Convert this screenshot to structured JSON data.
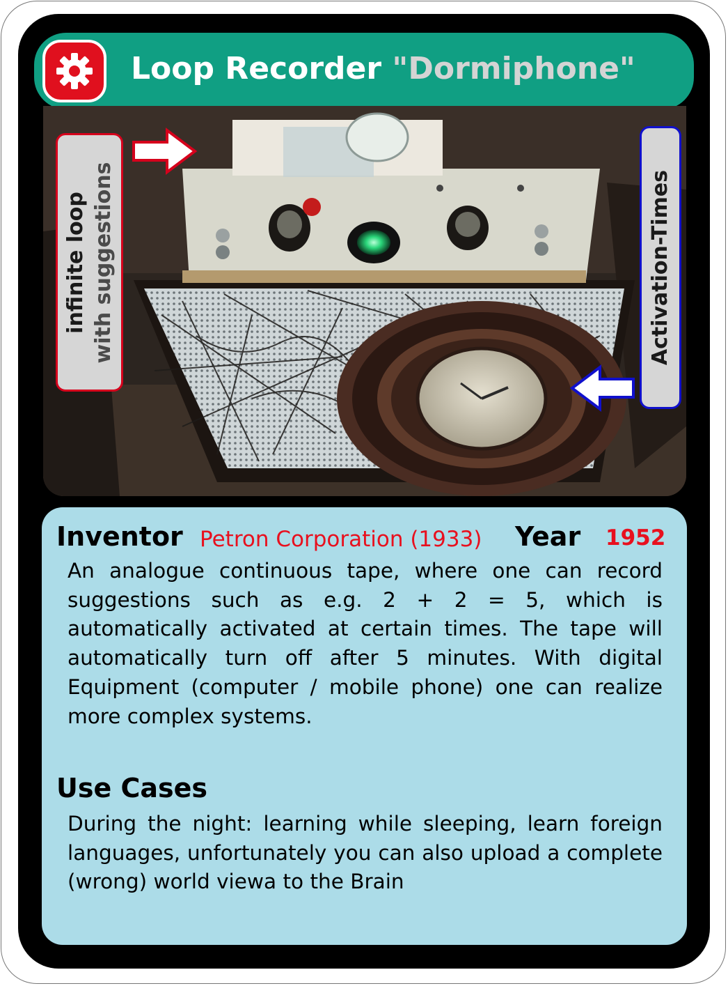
{
  "title": {
    "main": "Loop Recorder ",
    "sub": "\"Dormiphone\"",
    "icon": "gear-icon"
  },
  "labels": {
    "left_line1": "infinite loop",
    "left_line2": "with suggestions",
    "right": "Activation-Times"
  },
  "info": {
    "inventor_label": "Inventor",
    "inventor_value": "Petron Corporation (1933)",
    "year_label": "Year",
    "year_value": "1952",
    "description": "An analogue continuous tape, where one can record suggestions such as e.g. 2 + 2 = 5, which is automatically activated at certain times. The tape will automatically turn off after 5 minutes. With digital Equipment (computer / mobile phone) one can realize more complex systems.",
    "use_cases_label": "Use Cases",
    "use_cases_text": "During the night: learning while sleeping, learn foreign languages, unfortunately  you  can also upload a complete (wrong) world viewa to the Brain"
  },
  "colors": {
    "title_bar": "#109f83",
    "icon_bg": "#e0101e",
    "info_panel": "#acdce8",
    "accent_red": "#e8101e",
    "accent_blue": "#1010cc"
  }
}
